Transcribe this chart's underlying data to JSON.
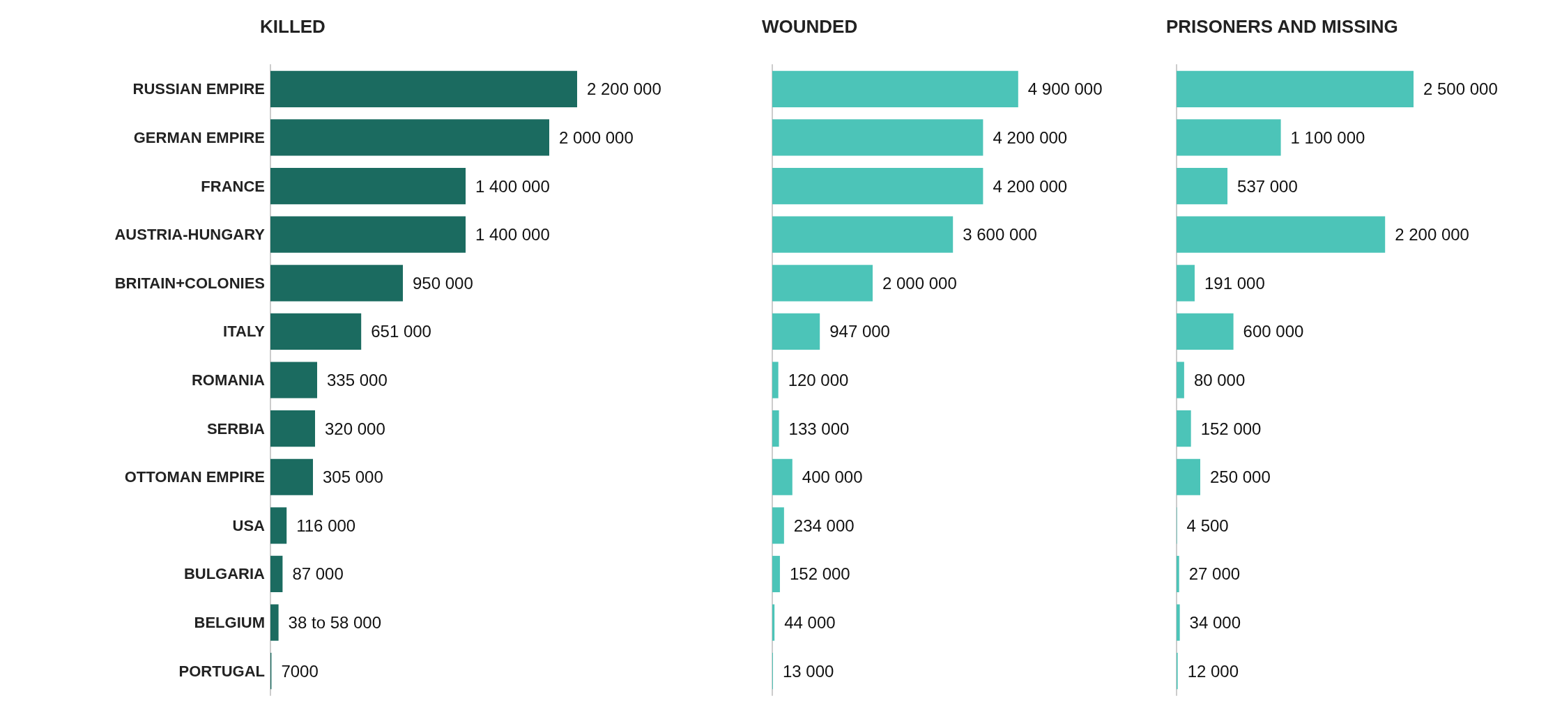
{
  "chart_data": [
    {
      "type": "bar",
      "orientation": "horizontal",
      "title": "KILLED",
      "color": "#1b6b60",
      "tick_labels": "y",
      "categories": [
        "RUSSIAN EMPIRE",
        "GERMAN EMPIRE",
        "FRANCE",
        "AUSTRIA-HUNGARY",
        "BRITAIN+COLONIES",
        "ITALY",
        "ROMANIA",
        "SERBIA",
        "OTTOMAN EMPIRE",
        "USA",
        "BULGARIA",
        "BELGIUM",
        "PORTUGAL"
      ],
      "values": [
        2200000,
        2000000,
        1400000,
        1400000,
        950000,
        651000,
        335000,
        320000,
        305000,
        116000,
        87000,
        58000,
        7000
      ],
      "value_labels": [
        "2 200 000",
        "2 000 000",
        "1 400 000",
        "1 400 000",
        "950 000",
        "651 000",
        "335 000",
        "320 000",
        "305 000",
        "116 000",
        "87 000",
        "38 to 58 000",
        "7000"
      ]
    },
    {
      "type": "bar",
      "orientation": "horizontal",
      "title": "WOUNDED",
      "color": "#4cc4b8",
      "tick_labels": false,
      "categories": [
        null,
        null,
        null,
        null,
        null,
        null,
        null,
        null,
        null,
        null,
        null,
        null,
        null
      ],
      "values": [
        4900000,
        4200000,
        4200000,
        3600000,
        2000000,
        947000,
        120000,
        133000,
        400000,
        234000,
        152000,
        44000,
        13000
      ],
      "value_labels": [
        "4 900 000",
        "4 200 000",
        "4 200 000",
        "3 600 000",
        "2 000 000",
        "947 000",
        "120 000",
        "133 000",
        "400 000",
        "234 000",
        "152 000",
        "44 000",
        "13 000"
      ]
    },
    {
      "type": "bar",
      "orientation": "horizontal",
      "title": "PRISONERS AND MISSING",
      "color": "#4cc4b8",
      "tick_labels": false,
      "categories": [
        null,
        null,
        null,
        null,
        null,
        null,
        null,
        null,
        null,
        null,
        null,
        null,
        null
      ],
      "values": [
        2500000,
        1100000,
        537000,
        2200000,
        191000,
        600000,
        80000,
        152000,
        250000,
        4500,
        27000,
        34000,
        12000
      ],
      "value_labels": [
        "2 500 000",
        "1 100 000",
        "537 000",
        "2 200 000",
        "191 000",
        "600 000",
        "80 000",
        "152 000",
        "250 000",
        "4 500",
        "27 000",
        "34 000",
        "12 000"
      ]
    }
  ]
}
